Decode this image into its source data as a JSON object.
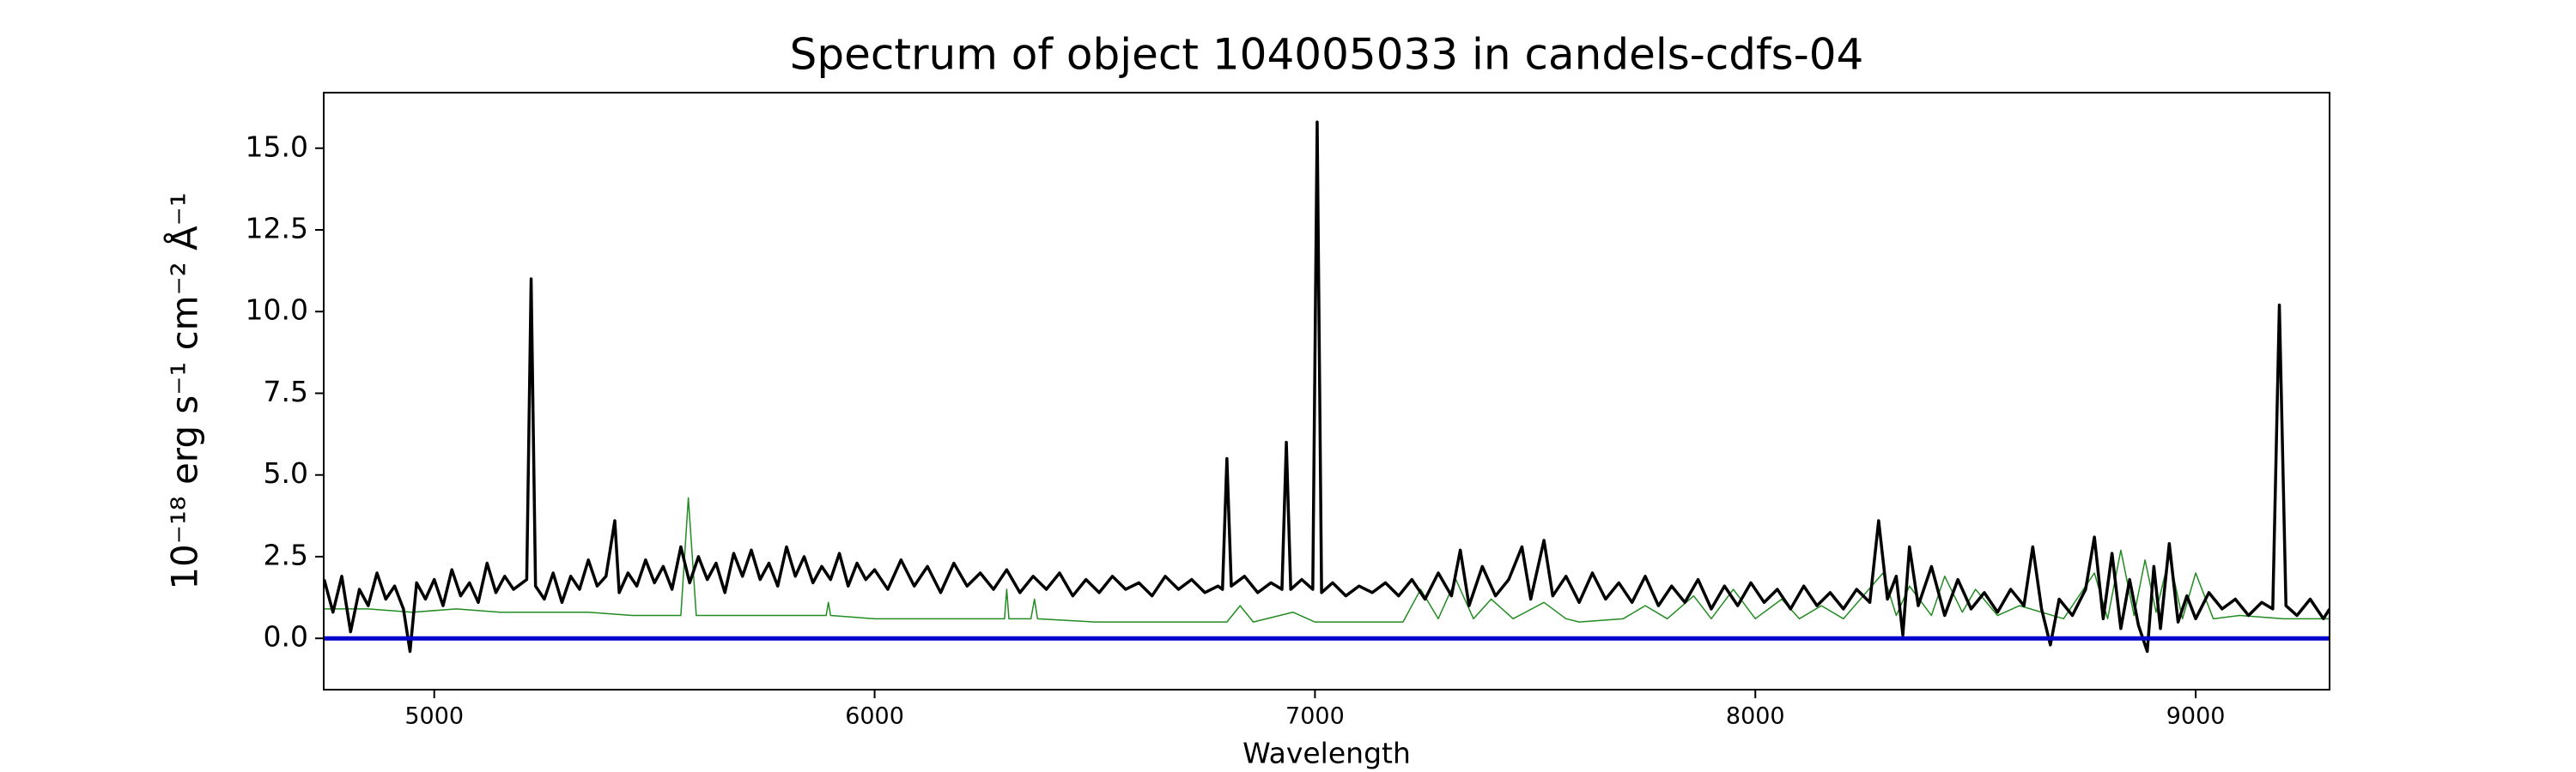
{
  "chart_data": {
    "type": "line",
    "title": "Spectrum of object 104005033 in candels-cdfs-04",
    "xlabel": "Wavelength",
    "ylabel": "10⁻¹⁸ erg s⁻¹ cm⁻² Å⁻¹",
    "xlim": [
      4749,
      9304
    ],
    "ylim": [
      -1.57,
      16.7
    ],
    "xticks": [
      5000,
      6000,
      7000,
      8000,
      9000
    ],
    "yticks": [
      {
        "value": 0,
        "label": "0.0"
      },
      {
        "value": 2.5,
        "label": "2.5"
      },
      {
        "value": 5,
        "label": "5.0"
      },
      {
        "value": 7.5,
        "label": "7.5"
      },
      {
        "value": 10,
        "label": "10.0"
      },
      {
        "value": 12.5,
        "label": "12.5"
      },
      {
        "value": 15,
        "label": "15.0"
      }
    ],
    "series": [
      {
        "color": "#228b22",
        "width": 1.5,
        "x": [
          4750,
          4850,
          4950,
          5050,
          5150,
          5250,
          5350,
          5450,
          5560,
          5577,
          5595,
          5700,
          5800,
          5890,
          5895,
          5900,
          6000,
          6100,
          6200,
          6295,
          6300,
          6305,
          6355,
          6363,
          6370,
          6500,
          6600,
          6800,
          6830,
          6860,
          6950,
          7000,
          7200,
          7240,
          7280,
          7320,
          7360,
          7400,
          7450,
          7520,
          7570,
          7600,
          7700,
          7750,
          7800,
          7860,
          7900,
          7950,
          8000,
          8060,
          8100,
          8150,
          8200,
          8290,
          8320,
          8350,
          8400,
          8430,
          8470,
          8500,
          8550,
          8600,
          8700,
          8770,
          8800,
          8830,
          8860,
          8885,
          8910,
          8940,
          8970,
          9000,
          9040,
          9100,
          9200,
          9304
        ],
        "values": [
          0.9,
          0.9,
          0.8,
          0.9,
          0.8,
          0.8,
          0.8,
          0.7,
          0.7,
          4.3,
          0.7,
          0.7,
          0.7,
          0.7,
          1.1,
          0.7,
          0.6,
          0.6,
          0.6,
          0.6,
          1.5,
          0.6,
          0.6,
          1.2,
          0.6,
          0.5,
          0.5,
          0.5,
          1.0,
          0.5,
          0.8,
          0.5,
          0.5,
          1.5,
          0.6,
          1.8,
          0.6,
          1.2,
          0.6,
          1.1,
          0.6,
          0.5,
          0.6,
          1.0,
          0.6,
          1.3,
          0.6,
          1.5,
          0.6,
          1.2,
          0.6,
          1.0,
          0.6,
          2.0,
          0.7,
          1.6,
          0.7,
          1.9,
          0.8,
          1.5,
          0.7,
          1.0,
          0.6,
          2.0,
          0.6,
          2.7,
          0.7,
          2.4,
          0.8,
          2.5,
          0.6,
          2.0,
          0.6,
          0.7,
          0.6,
          0.6
        ]
      },
      {
        "color": "#000000",
        "width": 3.5,
        "x": [
          4750,
          4770,
          4790,
          4810,
          4830,
          4850,
          4870,
          4890,
          4910,
          4930,
          4945,
          4960,
          4980,
          5000,
          5020,
          5040,
          5060,
          5080,
          5100,
          5120,
          5140,
          5160,
          5180,
          5200,
          5210,
          5220,
          5230,
          5250,
          5270,
          5290,
          5310,
          5330,
          5350,
          5370,
          5390,
          5410,
          5420,
          5440,
          5460,
          5480,
          5500,
          5520,
          5540,
          5560,
          5580,
          5600,
          5620,
          5640,
          5660,
          5680,
          5700,
          5720,
          5740,
          5760,
          5780,
          5800,
          5820,
          5840,
          5860,
          5880,
          5900,
          5920,
          5940,
          5960,
          5980,
          6000,
          6030,
          6060,
          6090,
          6120,
          6150,
          6180,
          6210,
          6240,
          6270,
          6300,
          6330,
          6360,
          6390,
          6420,
          6450,
          6480,
          6510,
          6540,
          6570,
          6600,
          6630,
          6660,
          6690,
          6720,
          6750,
          6780,
          6790,
          6800,
          6810,
          6840,
          6870,
          6900,
          6925,
          6935,
          6945,
          6970,
          6995,
          7005,
          7015,
          7040,
          7070,
          7100,
          7130,
          7160,
          7190,
          7220,
          7250,
          7280,
          7310,
          7330,
          7350,
          7380,
          7410,
          7440,
          7470,
          7490,
          7520,
          7540,
          7570,
          7600,
          7630,
          7660,
          7690,
          7720,
          7750,
          7780,
          7810,
          7840,
          7870,
          7900,
          7930,
          7960,
          7990,
          8020,
          8050,
          8080,
          8110,
          8140,
          8170,
          8200,
          8230,
          8260,
          8280,
          8300,
          8320,
          8335,
          8350,
          8370,
          8400,
          8430,
          8460,
          8490,
          8520,
          8550,
          8580,
          8610,
          8630,
          8650,
          8670,
          8690,
          8720,
          8750,
          8770,
          8790,
          8810,
          8830,
          8850,
          8870,
          8890,
          8905,
          8920,
          8940,
          8960,
          8980,
          9000,
          9030,
          9060,
          9090,
          9120,
          9150,
          9175,
          9190,
          9205,
          9230,
          9260,
          9290,
          9304
        ],
        "values": [
          1.8,
          0.8,
          1.9,
          0.2,
          1.5,
          1.0,
          2.0,
          1.2,
          1.6,
          0.9,
          -0.4,
          1.7,
          1.2,
          1.8,
          1.0,
          2.1,
          1.3,
          1.7,
          1.1,
          2.3,
          1.4,
          1.9,
          1.5,
          1.7,
          1.8,
          11.0,
          1.6,
          1.2,
          2.0,
          1.1,
          1.9,
          1.5,
          2.4,
          1.6,
          1.9,
          3.6,
          1.4,
          2.0,
          1.6,
          2.4,
          1.7,
          2.2,
          1.5,
          2.8,
          1.7,
          2.5,
          1.8,
          2.3,
          1.4,
          2.6,
          1.9,
          2.7,
          1.8,
          2.3,
          1.6,
          2.8,
          1.9,
          2.5,
          1.7,
          2.2,
          1.8,
          2.6,
          1.6,
          2.3,
          1.8,
          2.1,
          1.5,
          2.4,
          1.6,
          2.2,
          1.4,
          2.3,
          1.6,
          2.0,
          1.5,
          2.1,
          1.4,
          1.9,
          1.5,
          2.0,
          1.3,
          1.8,
          1.4,
          1.9,
          1.5,
          1.7,
          1.3,
          1.9,
          1.5,
          1.8,
          1.4,
          1.6,
          1.5,
          5.5,
          1.6,
          1.9,
          1.4,
          1.7,
          1.5,
          6.0,
          1.5,
          1.8,
          1.5,
          15.8,
          1.4,
          1.7,
          1.3,
          1.6,
          1.4,
          1.7,
          1.3,
          1.8,
          1.2,
          2.0,
          1.3,
          2.7,
          1.0,
          2.2,
          1.3,
          1.8,
          2.8,
          1.2,
          3.0,
          1.3,
          1.9,
          1.1,
          2.0,
          1.2,
          1.7,
          1.1,
          1.9,
          1.0,
          1.6,
          1.1,
          1.8,
          0.9,
          1.6,
          1.0,
          1.7,
          1.1,
          1.5,
          0.9,
          1.6,
          1.0,
          1.4,
          0.9,
          1.5,
          1.1,
          3.6,
          1.2,
          1.9,
          0.1,
          2.8,
          1.0,
          2.2,
          0.7,
          1.8,
          0.9,
          1.4,
          0.8,
          1.5,
          1.0,
          2.8,
          0.9,
          -0.2,
          1.2,
          0.7,
          1.5,
          3.1,
          0.6,
          2.6,
          0.3,
          1.8,
          0.4,
          -0.4,
          2.2,
          0.3,
          2.9,
          0.5,
          1.3,
          0.6,
          1.4,
          0.9,
          1.2,
          0.7,
          1.1,
          0.9,
          10.2,
          1.0,
          0.7,
          1.2,
          0.6,
          0.9
        ]
      },
      {
        "color": "#0000cc",
        "width": 5,
        "x": [
          4749,
          9304
        ],
        "values": [
          0,
          0
        ]
      }
    ]
  }
}
